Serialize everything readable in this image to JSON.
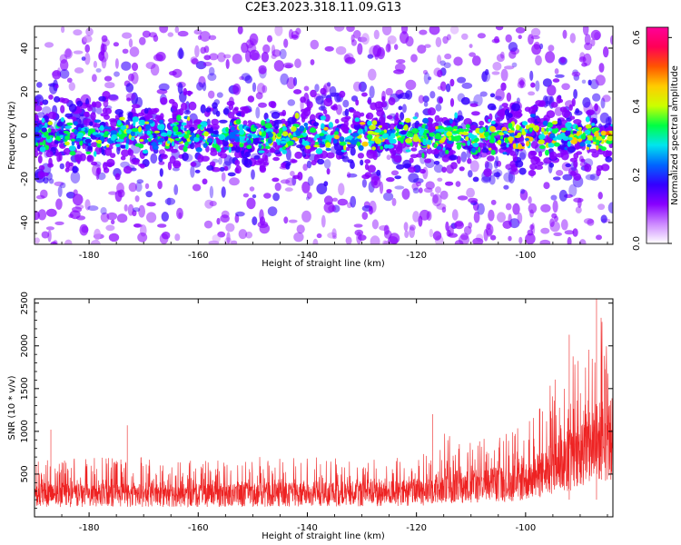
{
  "title": "C2E3.2023.318.11.09.G13",
  "colors": {
    "snr_line": "#ee2222",
    "axis": "#000000",
    "background": "#ffffff"
  },
  "chart_data": [
    {
      "type": "heatmap",
      "name": "spectrogram",
      "xlabel": "Height of straight line (km)",
      "ylabel": "Frequency (Hz)",
      "xlim": [
        -190,
        -84
      ],
      "ylim": [
        -50,
        50
      ],
      "xticks": [
        -180,
        -160,
        -140,
        -120,
        -100
      ],
      "yticks": [
        -40,
        -20,
        0,
        20,
        40
      ],
      "colorbar": {
        "label": "Normalized spectral amplitude",
        "range": [
          0.0,
          0.63
        ],
        "ticks": [
          "0.0",
          "0.2",
          "0.4",
          "0.6"
        ],
        "colormap": [
          "#ffffff",
          "#cc88ff",
          "#8800ff",
          "#3300ff",
          "#0066ff",
          "#00e5ee",
          "#00ff44",
          "#ccff00",
          "#ffcc00",
          "#ff5500",
          "#ff0055",
          "#ff0099"
        ]
      },
      "band": {
        "center_hz": 0,
        "half_width_hz": 6,
        "scatter_hz": 50
      }
    },
    {
      "type": "line",
      "name": "snr",
      "xlabel": "Height of straight line (km)",
      "ylabel": "SNR (10 * v/v)",
      "xlim": [
        -190,
        -84
      ],
      "ylim": [
        0,
        2550
      ],
      "xticks": [
        -180,
        -160,
        -140,
        -120,
        -100
      ],
      "yticks": [
        500,
        1000,
        1500,
        2000,
        2500
      ],
      "envelope_x": [
        -190,
        -180,
        -170,
        -160,
        -150,
        -140,
        -130,
        -122,
        -118,
        -116,
        -110,
        -105,
        -100,
        -97,
        -94,
        -91,
        -88,
        -86,
        -84
      ],
      "envelope_baseline": [
        250,
        250,
        260,
        250,
        260,
        260,
        270,
        280,
        300,
        350,
        350,
        380,
        420,
        500,
        600,
        700,
        800,
        900,
        900
      ],
      "envelope_peak": [
        650,
        700,
        700,
        650,
        700,
        700,
        700,
        700,
        800,
        1000,
        900,
        950,
        1100,
        1400,
        1700,
        2000,
        2300,
        2500,
        2100
      ],
      "notable_peaks": [
        {
          "x": -187,
          "y": 1020
        },
        {
          "x": -173,
          "y": 1070
        },
        {
          "x": -117,
          "y": 1200
        },
        {
          "x": -92,
          "y": 2130
        },
        {
          "x": -87,
          "y": 2560
        }
      ]
    }
  ]
}
